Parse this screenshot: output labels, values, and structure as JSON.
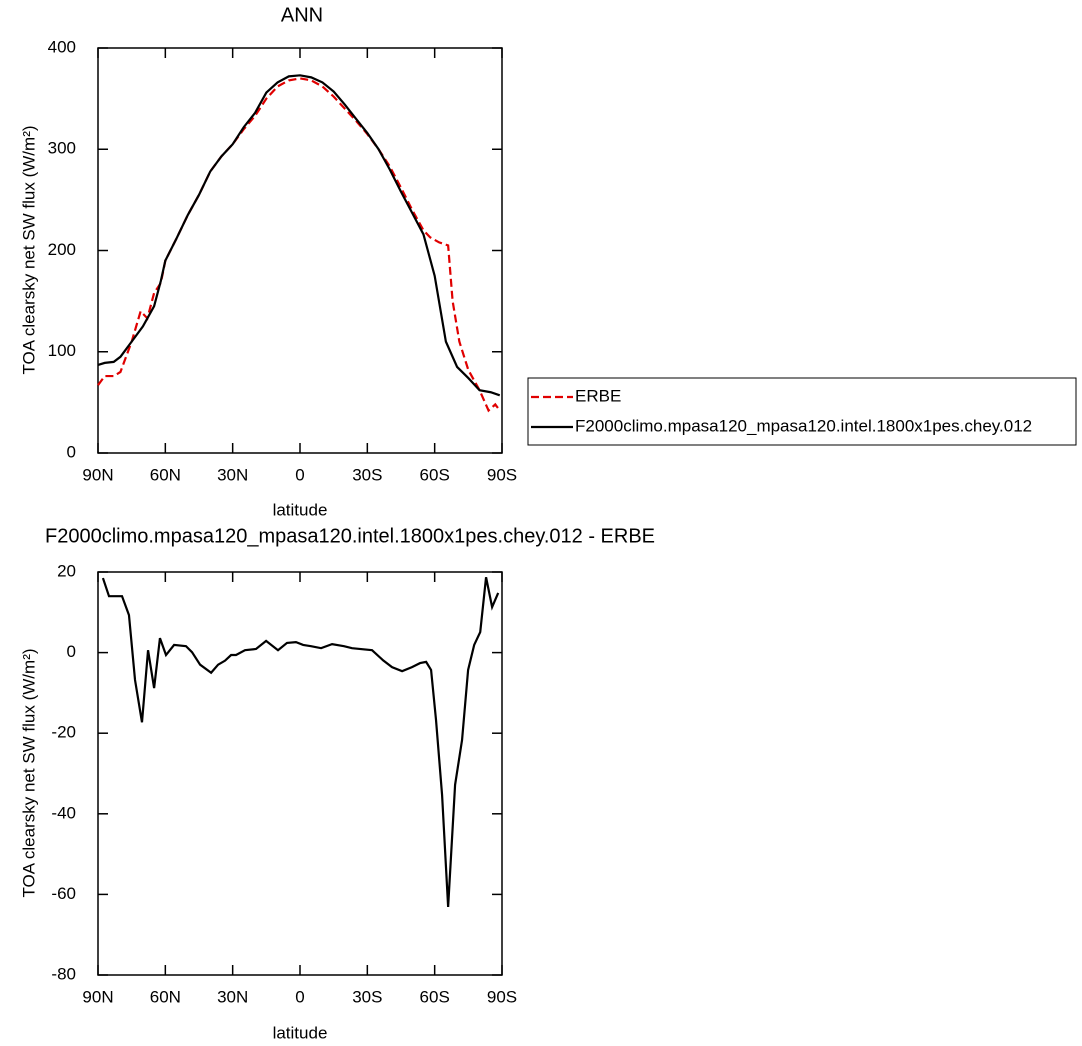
{
  "chart_data": [
    {
      "type": "line",
      "title": "ANN",
      "xlabel": "latitude",
      "ylabel": "TOA clearsky net SW flux (W/m²)",
      "xlim": [
        90,
        -90
      ],
      "xticks": [
        {
          "value": 90,
          "label": "90N"
        },
        {
          "value": 60,
          "label": "60N"
        },
        {
          "value": 30,
          "label": "30N"
        },
        0,
        {
          "value": -30,
          "label": "30S"
        },
        {
          "value": -60,
          "label": "60S"
        },
        {
          "value": -90,
          "label": "90S"
        }
      ],
      "ylim": [
        0,
        400
      ],
      "yticks": [
        0,
        100,
        200,
        300,
        400
      ],
      "legend": "right",
      "series": [
        {
          "name": "ERBE",
          "color": "#e00000",
          "dashed": true,
          "x": [
            90,
            87,
            83,
            80,
            75,
            71,
            68,
            65,
            62,
            60,
            55,
            50,
            45,
            40,
            35,
            30,
            25,
            20,
            15,
            10,
            5,
            0,
            -5,
            -10,
            -15,
            -20,
            -25,
            -30,
            -35,
            -40,
            -45,
            -50,
            -55,
            -58,
            -62,
            -66,
            -68,
            -71,
            -75,
            -80,
            -84,
            -87,
            -89
          ],
          "values": [
            67,
            76,
            76,
            80,
            110,
            140,
            133,
            158,
            168,
            190,
            212,
            235,
            255,
            278,
            293,
            305,
            320,
            333,
            350,
            362,
            368,
            370,
            368,
            362,
            352,
            340,
            328,
            315,
            300,
            283,
            262,
            240,
            220,
            213,
            208,
            205,
            150,
            110,
            82,
            62,
            42,
            48,
            42
          ]
        },
        {
          "name": "F2000climo.mpasa120_mpasa120.intel.1800x1pes.chey.012",
          "color": "#000000",
          "dashed": false,
          "x": [
            90,
            87,
            83,
            80,
            75,
            70,
            65,
            62,
            60,
            55,
            50,
            45,
            40,
            35,
            30,
            25,
            20,
            15,
            10,
            5,
            0,
            -5,
            -10,
            -15,
            -20,
            -25,
            -30,
            -35,
            -40,
            -45,
            -50,
            -55,
            -60,
            -65,
            -70,
            -75,
            -80,
            -85,
            -89
          ],
          "values": [
            87,
            89,
            90,
            95,
            110,
            125,
            145,
            170,
            190,
            212,
            235,
            255,
            278,
            293,
            305,
            322,
            336,
            356,
            366,
            372,
            373,
            371,
            366,
            357,
            344,
            330,
            316,
            300,
            280,
            258,
            237,
            216,
            175,
            110,
            85,
            74,
            62,
            60,
            57
          ]
        }
      ]
    },
    {
      "type": "line",
      "title": "F2000climo.mpasa120_mpasa120.intel.1800x1pes.chey.012 - ERBE",
      "xlabel": "latitude",
      "ylabel": "TOA clearsky net SW flux (W/m²)",
      "xlim": [
        90,
        -90
      ],
      "xticks": [
        {
          "value": 90,
          "label": "90N"
        },
        {
          "value": 60,
          "label": "60N"
        },
        {
          "value": 30,
          "label": "30N"
        },
        0,
        {
          "value": -30,
          "label": "30S"
        },
        {
          "value": -60,
          "label": "60S"
        },
        {
          "value": -90,
          "label": "90S"
        }
      ],
      "ylim": [
        -80,
        20
      ],
      "yticks": [
        -80,
        -60,
        -40,
        -20,
        0,
        20
      ],
      "color": "#000000",
      "x": [
        87.8,
        85.1,
        79.3,
        76.2,
        73.5,
        70.4,
        67.7,
        65,
        62.4,
        59.7,
        56.1,
        50.8,
        48.1,
        44.5,
        39.6,
        36.5,
        33.4,
        30.7,
        28.5,
        24.5,
        19.6,
        15.1,
        9.8,
        5.8,
        1.8,
        -1.4,
        -4.9,
        -9.4,
        -14.3,
        -19.6,
        -23.2,
        -32.1,
        -37,
        -41,
        -45.5,
        -49.9,
        -53.5,
        -56.2,
        -58.4,
        -60.6,
        -63.3,
        -66,
        -69.1,
        -72.2,
        -74.9,
        -77.6,
        -80.3,
        -82.9,
        -85.6,
        -88.3
      ],
      "values": [
        18.5,
        14,
        14,
        9.3,
        -6.8,
        -17.3,
        0.6,
        -8.8,
        3.6,
        -0.6,
        1.9,
        1.6,
        0.1,
        -3,
        -5,
        -3,
        -2,
        -0.6,
        -0.6,
        0.6,
        0.9,
        2.9,
        0.6,
        2.4,
        2.6,
        1.9,
        1.6,
        1.1,
        2.1,
        1.6,
        1.1,
        0.6,
        -1.9,
        -3.6,
        -4.6,
        -3.6,
        -2.6,
        -2.3,
        -4.3,
        -16.7,
        -35.3,
        -63.1,
        -32.8,
        -21.7,
        -4.3,
        1.9,
        5.1,
        18.7,
        11.3,
        14.8
      ]
    }
  ]
}
